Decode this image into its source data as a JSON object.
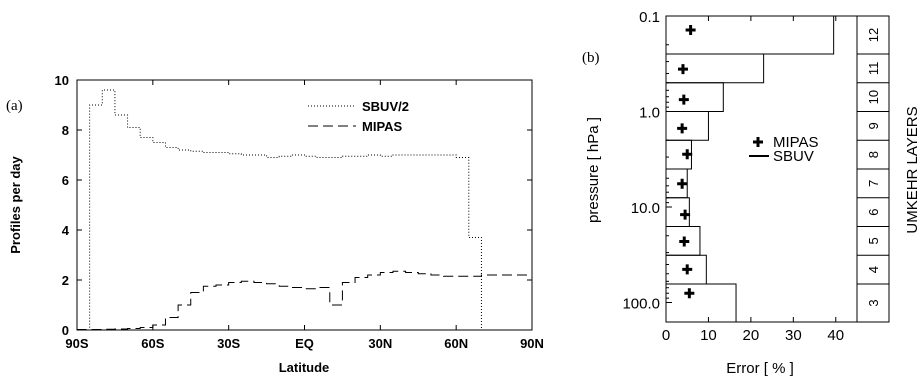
{
  "chart_data": [
    {
      "type": "line",
      "panel_label": "(a)",
      "xlabel": "Latitude",
      "ylabel": "Profiles per day",
      "xlim": [
        -90,
        90
      ],
      "ylim": [
        0,
        10
      ],
      "x_ticks": [
        {
          "v": -90,
          "label": "90S"
        },
        {
          "v": -60,
          "label": "60S"
        },
        {
          "v": -30,
          "label": "30S"
        },
        {
          "v": 0,
          "label": "EQ"
        },
        {
          "v": 30,
          "label": "30N"
        },
        {
          "v": 60,
          "label": "60N"
        },
        {
          "v": 90,
          "label": "90N"
        }
      ],
      "y_ticks": [
        0,
        2,
        4,
        6,
        8,
        10
      ],
      "legend_position": "top-right",
      "series": [
        {
          "name": "SBUV/2",
          "style": "dotted",
          "x": [
            -90,
            -85,
            -80,
            -75,
            -70,
            -65,
            -60,
            -55,
            -50,
            -45,
            -40,
            -35,
            -30,
            -25,
            -20,
            -15,
            -10,
            -5,
            0,
            5,
            10,
            15,
            20,
            25,
            30,
            35,
            40,
            45,
            50,
            55,
            60,
            65,
            70,
            75,
            80,
            85,
            90
          ],
          "y": [
            0,
            9.0,
            9.6,
            8.6,
            8.1,
            7.7,
            7.5,
            7.3,
            7.2,
            7.15,
            7.1,
            7.1,
            7.05,
            7.0,
            7.0,
            6.9,
            6.95,
            7.0,
            6.95,
            6.9,
            6.9,
            6.95,
            6.95,
            7.0,
            6.95,
            7.0,
            7.0,
            7.0,
            7.0,
            7.0,
            6.9,
            3.7,
            0,
            0,
            0,
            0,
            0
          ]
        },
        {
          "name": "MIPAS",
          "style": "dashed",
          "x": [
            -90,
            -85,
            -80,
            -75,
            -70,
            -65,
            -60,
            -55,
            -50,
            -45,
            -40,
            -35,
            -30,
            -25,
            -20,
            -15,
            -10,
            -5,
            0,
            5,
            10,
            15,
            20,
            25,
            30,
            35,
            40,
            45,
            50,
            55,
            60,
            65,
            70,
            75,
            80,
            85,
            90
          ],
          "y": [
            0.02,
            0.02,
            0.03,
            0.04,
            0.06,
            0.1,
            0.2,
            0.5,
            1.0,
            1.5,
            1.75,
            1.8,
            1.9,
            1.95,
            1.9,
            1.85,
            1.75,
            1.7,
            1.65,
            1.7,
            1.0,
            1.9,
            2.1,
            2.2,
            2.3,
            2.35,
            2.3,
            2.25,
            2.2,
            2.15,
            2.15,
            2.15,
            2.2,
            2.2,
            2.2,
            2.2,
            1.2
          ]
        }
      ]
    },
    {
      "type": "bar",
      "panel_label": "(b)",
      "xlabel": "Error [ % ]",
      "ylabel": "pressure [ hPa ]",
      "right_label": "UMKEHR LAYERS",
      "xlim": [
        0,
        45
      ],
      "x_ticks": [
        0,
        10,
        20,
        30,
        40
      ],
      "y_scale": "log",
      "ylim": [
        0.1,
        160
      ],
      "y_ticks": [
        {
          "v": 0.1,
          "label": "0.1"
        },
        {
          "v": 1.0,
          "label": "1.0"
        },
        {
          "v": 10.0,
          "label": "10.0"
        },
        {
          "v": 100.0,
          "label": "100.0"
        }
      ],
      "legend_position": "center-right",
      "series_names": [
        "MIPAS",
        "SBUV"
      ],
      "layers": [
        {
          "layer": "3",
          "p_top": 64.0,
          "p_bottom": 160.0,
          "sbuv": 16.5,
          "mipas_p": 80.0,
          "mipas": 5.5
        },
        {
          "layer": "4",
          "p_top": 32.0,
          "p_bottom": 64.0,
          "sbuv": 9.5,
          "mipas_p": 45.0,
          "mipas": 5.0
        },
        {
          "layer": "5",
          "p_top": 16.0,
          "p_bottom": 32.0,
          "sbuv": 8.0,
          "mipas_p": 23.0,
          "mipas": 4.3
        },
        {
          "layer": "6",
          "p_top": 8.0,
          "p_bottom": 16.0,
          "sbuv": 5.5,
          "mipas_p": 12.0,
          "mipas": 4.5
        },
        {
          "layer": "7",
          "p_top": 4.0,
          "p_bottom": 8.0,
          "sbuv": 5.0,
          "mipas_p": 5.7,
          "mipas": 3.8
        },
        {
          "layer": "8",
          "p_top": 2.0,
          "p_bottom": 4.0,
          "sbuv": 6.0,
          "mipas_p": 2.8,
          "mipas": 5.0
        },
        {
          "layer": "9",
          "p_top": 1.0,
          "p_bottom": 2.0,
          "sbuv": 10.0,
          "mipas_p": 1.5,
          "mipas": 3.8
        },
        {
          "layer": "10",
          "p_top": 0.5,
          "p_bottom": 1.0,
          "sbuv": 13.5,
          "mipas_p": 0.75,
          "mipas": 4.2
        },
        {
          "layer": "11",
          "p_top": 0.25,
          "p_bottom": 0.5,
          "sbuv": 23.0,
          "mipas_p": 0.36,
          "mipas": 4.0
        },
        {
          "layer": "12",
          "p_top": 0.1,
          "p_bottom": 0.25,
          "sbuv": 39.5,
          "mipas_p": 0.14,
          "mipas": 5.8
        }
      ]
    }
  ]
}
